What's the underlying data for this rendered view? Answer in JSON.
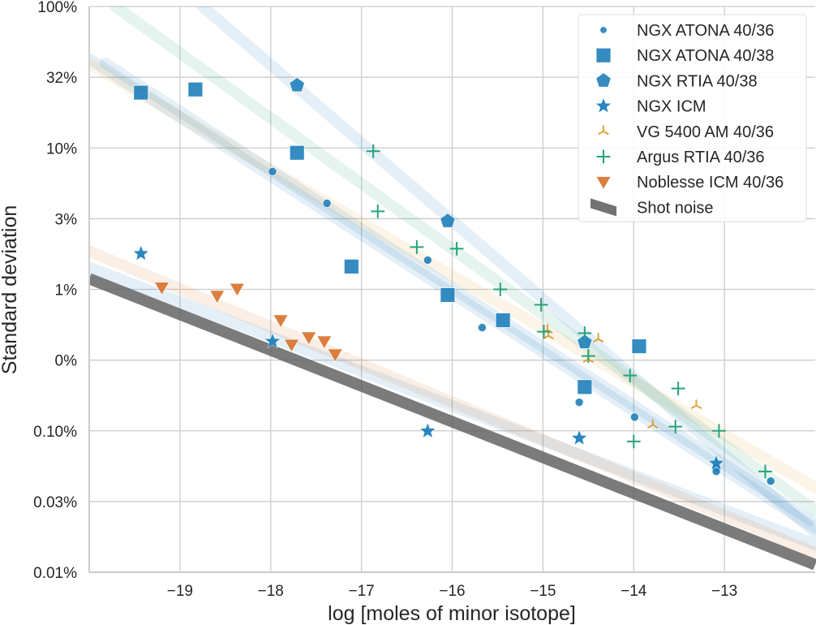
{
  "chart_data": {
    "type": "scatter",
    "title": "",
    "xlabel": "log [moles of minor isotope]",
    "ylabel": "Standard  deviation",
    "xlim": [
      -20,
      -12
    ],
    "ylim_percent": [
      0.01,
      100
    ],
    "yscale": "log",
    "grid": true,
    "legend_position": "top-right",
    "x_ticks": [
      {
        "value": -19,
        "label": "−19"
      },
      {
        "value": -18,
        "label": "−18"
      },
      {
        "value": -17,
        "label": "−17"
      },
      {
        "value": -16,
        "label": "−16"
      },
      {
        "value": -15,
        "label": "−15"
      },
      {
        "value": -14,
        "label": "−14"
      },
      {
        "value": -13,
        "label": "−13"
      }
    ],
    "y_ticks": [
      {
        "value": 100,
        "label": "100%"
      },
      {
        "value": 31.6,
        "label": "32%"
      },
      {
        "value": 10,
        "label": "10%"
      },
      {
        "value": 3.16,
        "label": "3%"
      },
      {
        "value": 1,
        "label": "1%"
      },
      {
        "value": 0.316,
        "label": "0%"
      },
      {
        "value": 0.1,
        "label": "0.10%"
      },
      {
        "value": 0.0316,
        "label": "0.03%"
      },
      {
        "value": 0.01,
        "label": "0.01%"
      }
    ],
    "series": [
      {
        "name": "NGX ATONA 40/36",
        "marker": "circle",
        "color": "#1f7fba",
        "points": [
          [
            -17.98,
            6.81
          ],
          [
            -17.38,
            4.06
          ],
          [
            -16.27,
            1.61
          ],
          [
            -15.67,
            0.537
          ],
          [
            -14.6,
            0.159
          ],
          [
            -13.99,
            0.125
          ],
          [
            -13.09,
            0.0544
          ],
          [
            -13.09,
            0.0516
          ],
          [
            -12.49,
            0.0441
          ]
        ],
        "fit": [
          [
            -20,
            42.8
          ],
          [
            -12,
            0.0204
          ]
        ]
      },
      {
        "name": "NGX ATONA 40/38",
        "marker": "square",
        "color": "#1f7fba",
        "points": [
          [
            -19.43,
            24.6
          ],
          [
            -18.83,
            25.9
          ],
          [
            -17.71,
            9.24
          ],
          [
            -17.11,
            1.45
          ],
          [
            -16.05,
            0.912
          ],
          [
            -15.44,
            0.605
          ],
          [
            -14.54,
            0.204
          ],
          [
            -13.94,
            0.396
          ]
        ],
        "fit": [
          [
            -19.82,
            39.6
          ],
          [
            -12.05,
            0.0233
          ]
        ]
      },
      {
        "name": "NGX RTIA 40/38",
        "marker": "pentagon",
        "color": "#1f7fba",
        "points": [
          [
            -17.71,
            27.7
          ],
          [
            -16.05,
            3.04
          ],
          [
            -14.54,
            0.423
          ]
        ],
        "fit": [
          [
            -18.75,
            100
          ],
          [
            -12,
            0.0191
          ]
        ]
      },
      {
        "name": "NGX ICM",
        "marker": "star",
        "color": "#1f7fba",
        "points": [
          [
            -19.43,
            1.79
          ],
          [
            -17.98,
            0.429
          ],
          [
            -16.27,
            0.0995
          ],
          [
            -14.6,
            0.0887
          ],
          [
            -13.09,
            0.0589
          ]
        ],
        "fit": [
          [
            -20,
            1.43
          ],
          [
            -12,
            0.0157
          ]
        ]
      },
      {
        "name": "VG 5400 AM 40/36",
        "marker": "tri_down_arms",
        "color": "#e1a23a",
        "points": [
          [
            -14.95,
            0.516
          ],
          [
            -14.94,
            0.47
          ],
          [
            -14.39,
            0.446
          ],
          [
            -14.5,
            0.321
          ],
          [
            -13.31,
            0.151
          ],
          [
            -13.79,
            0.11
          ]
        ],
        "fit": [
          [
            -20,
            39.6
          ],
          [
            -12,
            0.0396
          ]
        ]
      },
      {
        "name": "Argus RTIA 40/36",
        "marker": "plus",
        "color": "#26a37a",
        "points": [
          [
            -16.87,
            9.49
          ],
          [
            -16.82,
            3.56
          ],
          [
            -16.39,
            1.99
          ],
          [
            -15.95,
            1.94
          ],
          [
            -15.47,
            1.0
          ],
          [
            -15.02,
            0.778
          ],
          [
            -14.99,
            0.502
          ],
          [
            -14.54,
            0.49
          ],
          [
            -14.5,
            0.338
          ],
          [
            -14.04,
            0.246
          ],
          [
            -13.51,
            0.199
          ],
          [
            -13.54,
            0.107
          ],
          [
            -14.0,
            0.0841
          ],
          [
            -13.06,
            0.1
          ],
          [
            -12.55,
            0.0516
          ]
        ],
        "fit": [
          [
            -19.71,
            100
          ],
          [
            -12,
            0.0274
          ]
        ]
      },
      {
        "name": "Noblesse ICM 40/36",
        "marker": "triangle_down",
        "color": "#d8702a",
        "points": [
          [
            -19.2,
            1.03
          ],
          [
            -18.59,
            0.899
          ],
          [
            -18.37,
            1.01
          ],
          [
            -17.89,
            0.605
          ],
          [
            -17.77,
            0.406
          ],
          [
            -17.58,
            0.458
          ],
          [
            -17.41,
            0.429
          ],
          [
            -17.29,
            0.347
          ]
        ],
        "fit": [
          [
            -20,
            1.86
          ],
          [
            -12,
            0.0137
          ]
        ]
      },
      {
        "name": "Shot noise",
        "marker": "band",
        "color": "#5a5a5a",
        "points": [],
        "fit": [
          [
            -20,
            1.19
          ],
          [
            -12,
            0.0113
          ]
        ]
      }
    ]
  }
}
